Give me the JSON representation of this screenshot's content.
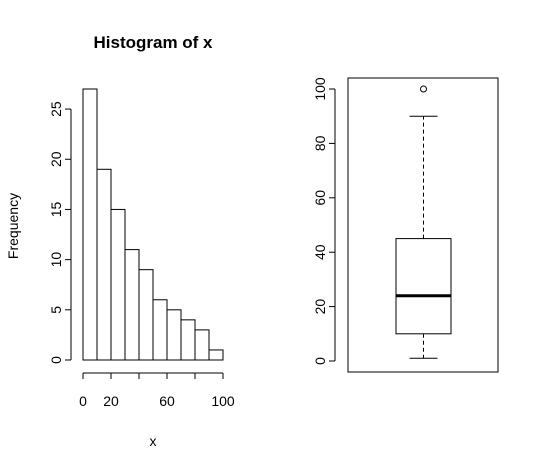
{
  "chart_data": [
    {
      "type": "bar",
      "title": "Histogram of x",
      "xlabel": "x",
      "ylabel": "Frequency",
      "bin_width": 10,
      "bins": [
        [
          0,
          10
        ],
        [
          10,
          20
        ],
        [
          20,
          30
        ],
        [
          30,
          40
        ],
        [
          40,
          50
        ],
        [
          50,
          60
        ],
        [
          60,
          70
        ],
        [
          70,
          80
        ],
        [
          80,
          90
        ],
        [
          90,
          100
        ]
      ],
      "values": [
        27,
        19,
        15,
        11,
        9,
        6,
        5,
        4,
        3,
        1
      ],
      "xlim": [
        0,
        100
      ],
      "ylim": [
        0,
        27
      ],
      "x_ticks": [
        0,
        20,
        60,
        100
      ],
      "x_tick_labels": [
        "0",
        "20",
        "60",
        "100"
      ],
      "y_ticks": [
        0,
        5,
        10,
        15,
        20,
        25
      ],
      "y_tick_labels": [
        "0",
        "5",
        "10",
        "15",
        "20",
        "25"
      ],
      "grid": false,
      "color": "#ffffff",
      "stroke": "#000000"
    },
    {
      "type": "box",
      "title": "",
      "xlabel": "",
      "ylabel": "",
      "whisker_low": 1,
      "q1": 10,
      "median": 24,
      "q3": 45,
      "whisker_high": 90,
      "outliers": [
        100
      ],
      "ylim": [
        0,
        100
      ],
      "y_ticks": [
        0,
        20,
        40,
        60,
        80,
        100
      ],
      "y_tick_labels": [
        "0",
        "20",
        "40",
        "60",
        "80",
        "100"
      ],
      "grid": false
    }
  ]
}
